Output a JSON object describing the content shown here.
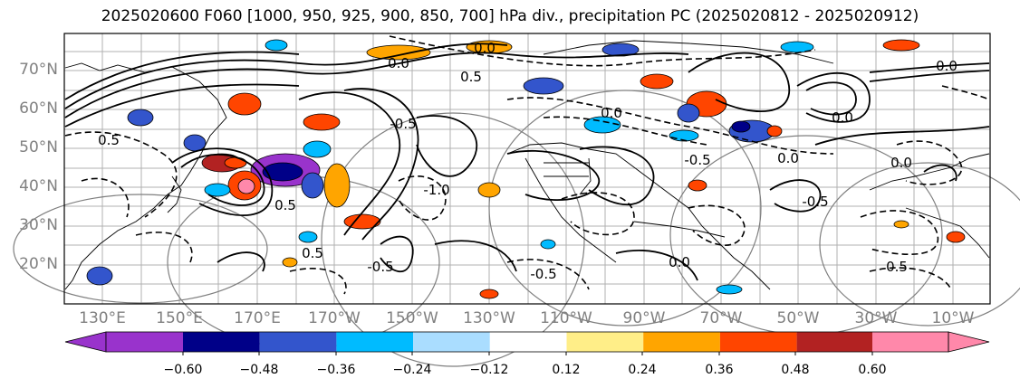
{
  "title": "2025020600 F060 [1000, 950, 925, 900, 850, 700] hPa div., precipitation PC (2025020812 - 2025020912)",
  "lat_labels": [
    "70°N",
    "60°N",
    "50°N",
    "40°N",
    "30°N",
    "20°N"
  ],
  "lon_labels": [
    "130°E",
    "150°E",
    "170°E",
    "170°W",
    "150°W",
    "130°W",
    "110°W",
    "90°W",
    "70°W",
    "50°W",
    "30°W",
    "10°W"
  ],
  "contour_labels": [
    "0.0",
    "0.0",
    "0.5",
    "0.5",
    "0.5",
    "-1.0",
    "0.0",
    "0.0",
    "-0.5",
    "0.0",
    "0.0",
    "-0.5",
    "-0.5",
    "0.5",
    "0.0",
    "0.5",
    "0.0",
    "-0.5",
    "-0.5"
  ],
  "colorbar": {
    "tick_labels": [
      "−0.60",
      "−0.48",
      "−0.36",
      "−0.24",
      "−0.12",
      "0.12",
      "0.24",
      "0.36",
      "0.48",
      "0.60"
    ],
    "colors": [
      "#9933cc",
      "#000088",
      "#3355cc",
      "#00bbff",
      "#aaddff",
      "#ffffff",
      "#ffee88",
      "#ffa500",
      "#ff4500",
      "#b22222",
      "#ff88aa"
    ]
  },
  "colors": {
    "grid": "#b0b0b0",
    "axis_label": "#808080",
    "contour": "#000000"
  }
}
